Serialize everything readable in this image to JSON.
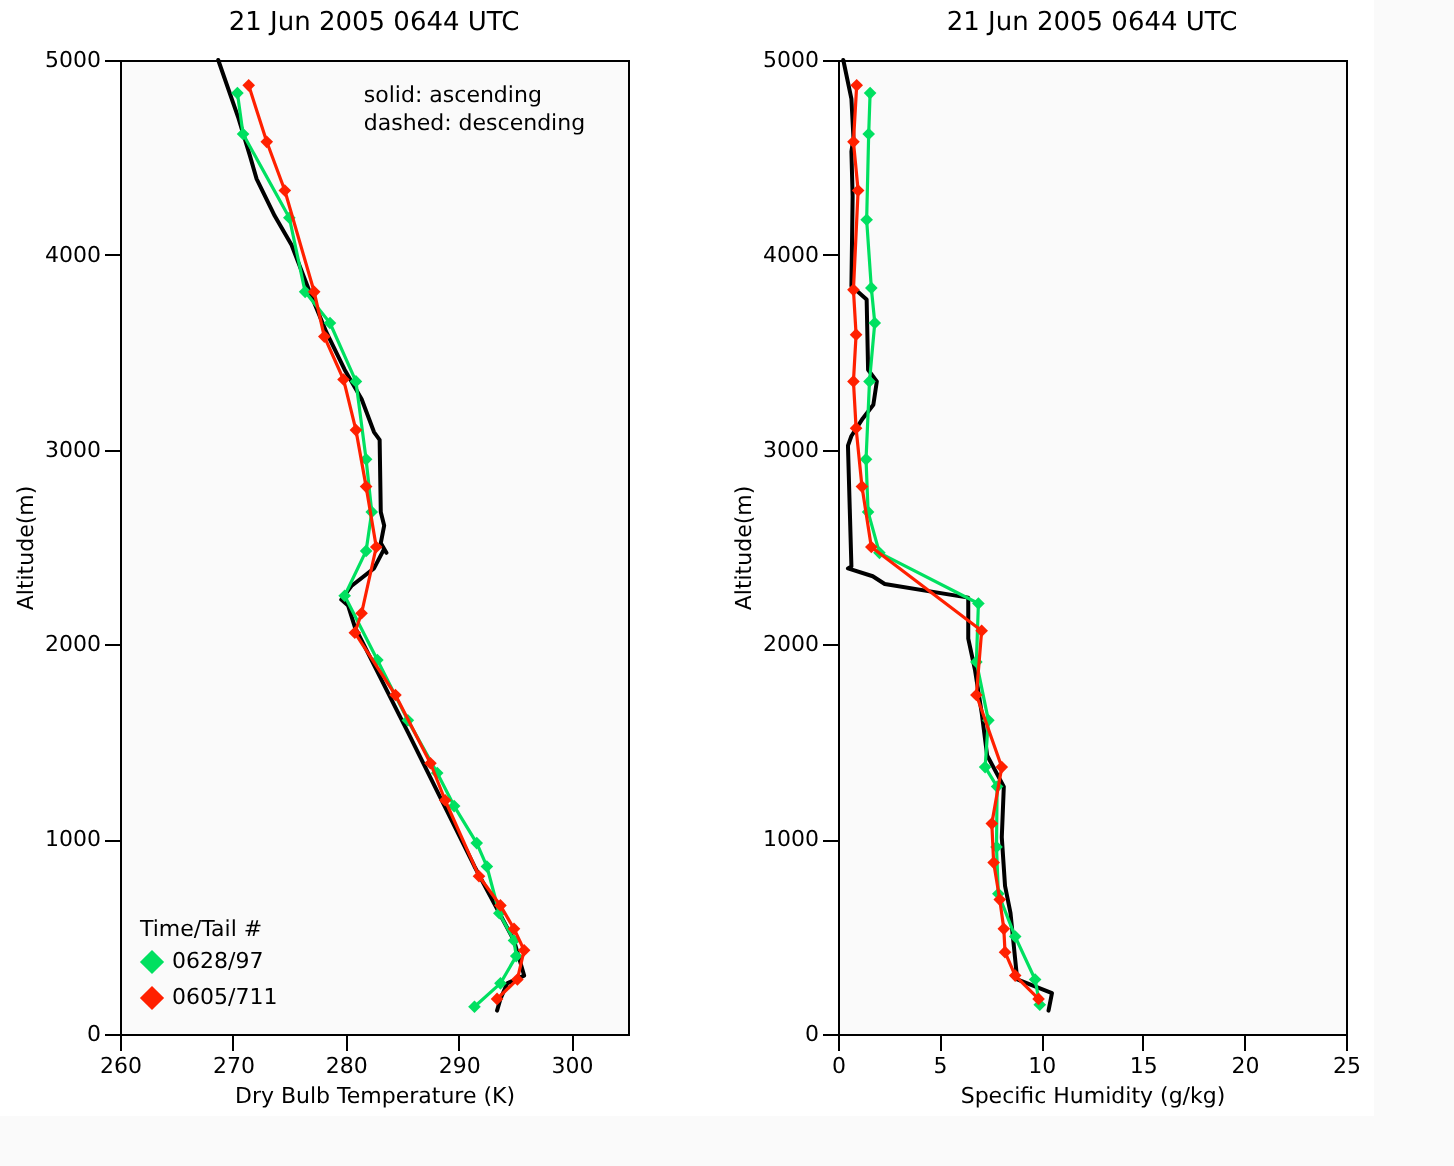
{
  "chart_data": [
    {
      "type": "line",
      "title": "21 Jun 2005 0644 UTC",
      "xlabel": "Dry Bulb Temperature (K)",
      "ylabel": "Altitude(m)",
      "xlim": [
        260,
        305
      ],
      "xticks": [
        260,
        270,
        280,
        290,
        300
      ],
      "ylim": [
        0,
        5000
      ],
      "yticks": [
        0,
        1000,
        2000,
        3000,
        4000,
        5000
      ],
      "legend": "bottom left",
      "legend_title": "Time/Tail #",
      "annotations": [
        "solid: ascending",
        "dashed: descending"
      ],
      "series": [
        {
          "color": "#000000",
          "marker": "none",
          "x": [
            268.7,
            270.5,
            271.5,
            272.1,
            273.7,
            275.2,
            276.8,
            278.3,
            279.9,
            281.4,
            282.5,
            283,
            283.1,
            283.4,
            283.1,
            283.6,
            283.4,
            282.5,
            280.5,
            279.6,
            280.2,
            280.8,
            285.5,
            291.4,
            294.9,
            295.8,
            294.3,
            293.7,
            293.4
          ],
          "values": [
            5000,
            4700,
            4510,
            4390,
            4200,
            4050,
            3810,
            3600,
            3410,
            3260,
            3090,
            3050,
            2680,
            2610,
            2520,
            2470,
            2490,
            2390,
            2300,
            2230,
            2200,
            2090,
            1550,
            860,
            480,
            300,
            260,
            180,
            120
          ]
        },
        {
          "name": "0628/97",
          "color": "#00e060",
          "marker": "diamond",
          "x": [
            270.4,
            270.9,
            275,
            276.4,
            278.6,
            280.9,
            281.8,
            282.3,
            281.8,
            279.9,
            282.8,
            285.5,
            288.1,
            289.6,
            291.6,
            292.5,
            293.6,
            294.9,
            295.1,
            293.7,
            291.4
          ],
          "values": [
            4830,
            4620,
            4190,
            3810,
            3650,
            3350,
            2950,
            2680,
            2480,
            2250,
            1920,
            1610,
            1340,
            1170,
            980,
            860,
            620,
            480,
            400,
            260,
            140
          ]
        },
        {
          "name": "0605/711",
          "color": "#ff2000",
          "marker": "diamond",
          "x": [
            271.4,
            273,
            274.6,
            277.2,
            278.1,
            279.8,
            280.9,
            281.8,
            282.7,
            281.4,
            280.8,
            284.4,
            287.5,
            288.8,
            291.8,
            293.7,
            294.9,
            295.8,
            295.2,
            293.4
          ],
          "values": [
            4870,
            4580,
            4330,
            3810,
            3580,
            3360,
            3100,
            2810,
            2500,
            2160,
            2060,
            1740,
            1390,
            1200,
            810,
            660,
            540,
            430,
            280,
            180
          ]
        }
      ]
    },
    {
      "type": "line",
      "title": "21 Jun 2005 0644 UTC",
      "xlabel": "Specific Humidity (g/kg)",
      "ylabel": "Altitude(m)",
      "xlim": [
        0,
        25
      ],
      "xticks": [
        0,
        5,
        10,
        15,
        20,
        25
      ],
      "ylim": [
        0,
        5000
      ],
      "yticks": [
        0,
        1000,
        2000,
        3000,
        4000,
        5000
      ],
      "series": [
        {
          "color": "#000000",
          "marker": "none",
          "x": [
            0.26,
            0.66,
            0.76,
            0.66,
            0.72,
            0.66,
            1.41,
            1.48,
            1.91,
            1.74,
            1.22,
            0.66,
            0.49,
            0.66,
            0.49,
            1.71,
            2.3,
            6.41,
            6.41,
            6.74,
            7.07,
            7.34,
            8.16,
            8.06,
            8.22,
            8.49,
            8.82,
            10.53,
            10.36
          ],
          "values": [
            5000,
            4800,
            4600,
            4530,
            4300,
            3840,
            3770,
            3410,
            3350,
            3230,
            3160,
            3070,
            3020,
            2400,
            2390,
            2350,
            2310,
            2240,
            2030,
            1870,
            1650,
            1430,
            1270,
            1010,
            760,
            620,
            280,
            210,
            120
          ]
        },
        {
          "name": "0628/97",
          "color": "#00e060",
          "marker": "diamond",
          "x": [
            1.58,
            1.51,
            1.41,
            1.64,
            1.81,
            1.55,
            1.38,
            1.48,
            2.04,
            6.91,
            6.81,
            7.4,
            7.24,
            7.83,
            7.8,
            7.89,
            8.72,
            9.7,
            9.93
          ],
          "values": [
            4830,
            4620,
            4180,
            3830,
            3650,
            3350,
            2950,
            2680,
            2470,
            2210,
            1910,
            1610,
            1370,
            1270,
            960,
            720,
            500,
            280,
            150
          ]
        },
        {
          "name": "0605/711",
          "color": "#ff2000",
          "marker": "diamond",
          "x": [
            0.92,
            0.76,
            0.99,
            0.76,
            0.89,
            0.76,
            0.89,
            1.18,
            1.64,
            7.07,
            6.81,
            8.06,
            7.57,
            7.66,
            7.96,
            8.16,
            8.22,
            8.72,
            9.87
          ],
          "values": [
            4870,
            4580,
            4330,
            3820,
            3590,
            3350,
            3110,
            2810,
            2500,
            2070,
            1740,
            1370,
            1080,
            880,
            690,
            540,
            420,
            300,
            180
          ]
        }
      ]
    }
  ]
}
